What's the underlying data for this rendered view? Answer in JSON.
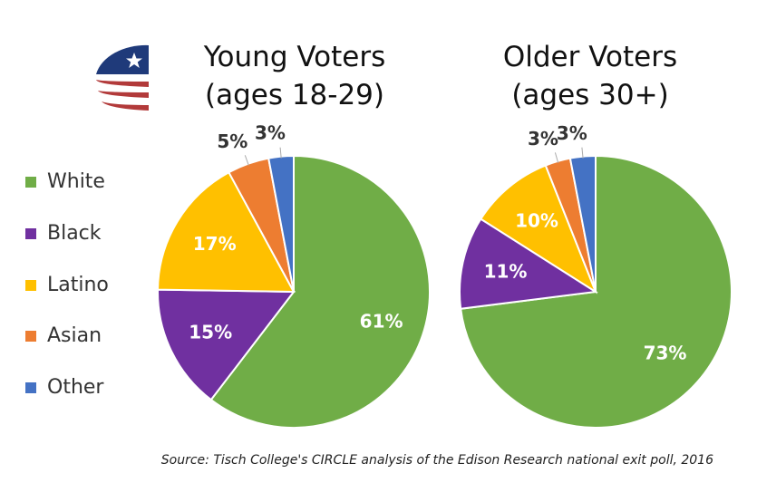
{
  "colors": {
    "White": "#70ad47",
    "Black": "#7030a0",
    "Latino": "#ffc000",
    "Asian": "#ed7d31",
    "Other": "#4472c4",
    "logo_blue": "#1f3a7a",
    "logo_red": "#b23a3a"
  },
  "logo": {
    "icon": "star-flag-logo-icon"
  },
  "legend": [
    "White",
    "Black",
    "Latino",
    "Asian",
    "Other"
  ],
  "source": "Source: Tisch College's CIRCLE analysis of the Edison Research national exit poll, 2016",
  "chart_data": [
    {
      "type": "pie",
      "title": "Young Voters\n(ages 18-29)",
      "title_lines": [
        "Young Voters",
        "(ages 18-29)"
      ],
      "categories": [
        "White",
        "Black",
        "Latino",
        "Asian",
        "Other"
      ],
      "values": [
        61,
        15,
        17,
        5,
        3
      ],
      "labels": [
        "61%",
        "15%",
        "17%",
        "5%",
        "3%"
      ]
    },
    {
      "type": "pie",
      "title": "Older Voters\n(ages 30+)",
      "title_lines": [
        "Older Voters",
        "(ages 30+)"
      ],
      "categories": [
        "White",
        "Black",
        "Latino",
        "Asian",
        "Other"
      ],
      "values": [
        73,
        11,
        10,
        3,
        3
      ],
      "labels": [
        "73%",
        "11%",
        "10%",
        "3%",
        "3%"
      ]
    }
  ]
}
